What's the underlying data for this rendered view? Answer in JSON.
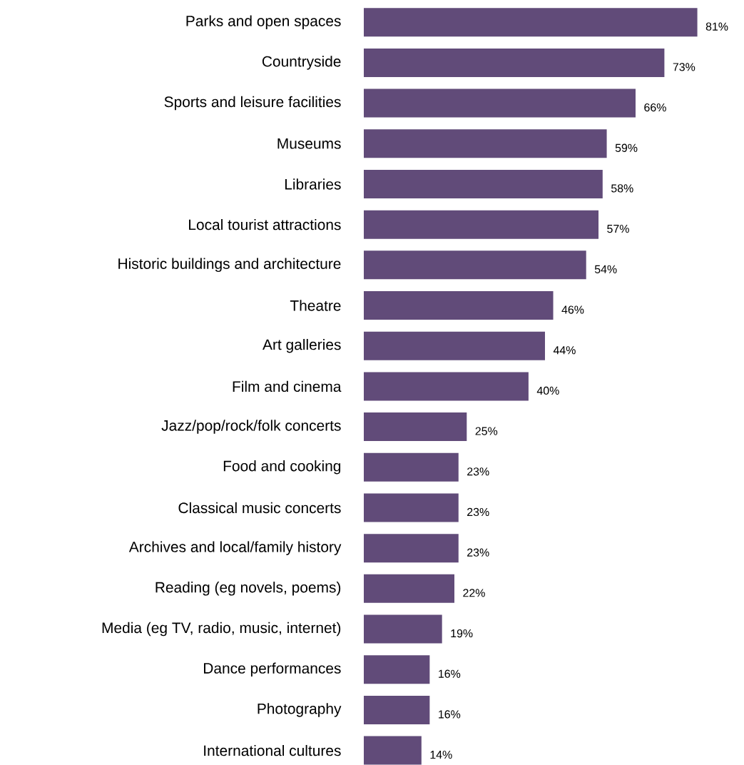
{
  "chart_data": {
    "type": "bar",
    "orientation": "horizontal",
    "color": "#614b79",
    "categories": [
      "Parks and open spaces",
      "Countryside",
      "Sports and leisure facilities",
      "Museums",
      "Libraries",
      "Local tourist attractions",
      "Historic buildings and architecture",
      "Theatre",
      "Art galleries",
      "Film and cinema",
      "Jazz/pop/rock/folk concerts",
      "Food and cooking",
      "Classical music concerts",
      "Archives and local/family history",
      "Reading (eg novels, poems)",
      "Media (eg TV, radio, music, internet)",
      "Dance performances",
      "Photography",
      "International cultures"
    ],
    "values": [
      81,
      73,
      66,
      59,
      58,
      57,
      54,
      46,
      44,
      40,
      25,
      23,
      23,
      23,
      22,
      19,
      16,
      16,
      14
    ],
    "value_labels": [
      "81%",
      "73%",
      "66%",
      "59%",
      "58%",
      "57%",
      "54%",
      "46%",
      "44%",
      "40%",
      "25%",
      "23%",
      "23%",
      "23%",
      "22%",
      "19%",
      "16%",
      "16%",
      "14%"
    ]
  }
}
